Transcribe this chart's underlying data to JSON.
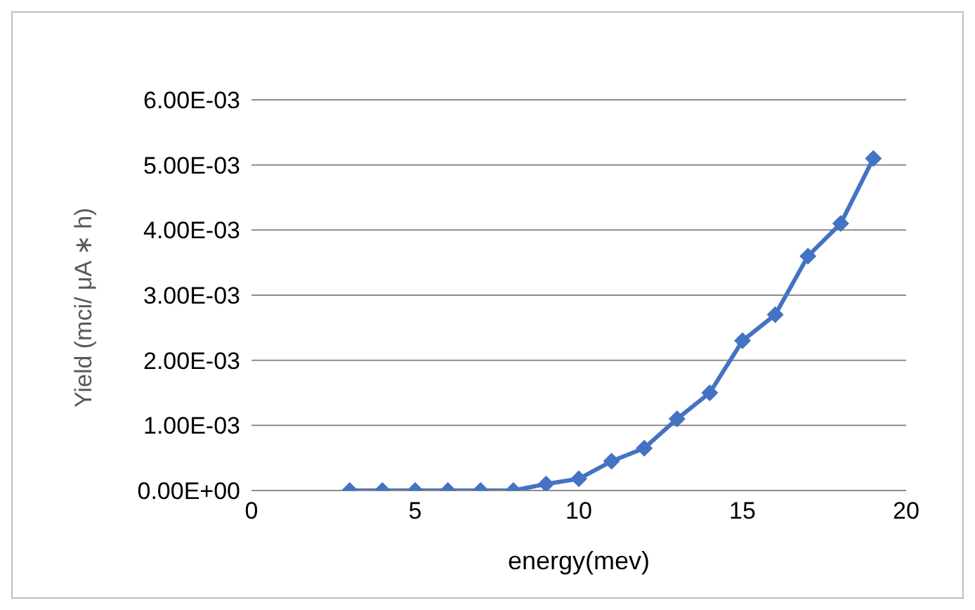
{
  "chart_data": {
    "type": "line",
    "xlabel": "energy(mev)",
    "ylabel": "Yield (mci/ μA ∗ h)",
    "x": [
      3,
      4,
      5,
      6,
      7,
      8,
      9,
      10,
      11,
      12,
      13,
      14,
      15,
      16,
      17,
      18,
      19
    ],
    "series": [
      {
        "color": "#4472c4",
        "values": [
          0,
          0,
          0,
          0,
          0,
          0,
          0.0001,
          0.00018,
          0.00045,
          0.00065,
          0.0011,
          0.0015,
          0.0023,
          0.0027,
          0.0036,
          0.0041,
          0.0051
        ]
      }
    ],
    "xlim": [
      0,
      20
    ],
    "xticks": [
      0,
      5,
      10,
      15,
      20
    ],
    "ylim": [
      0,
      0.006
    ],
    "yticks": [
      {
        "value": 0,
        "label": "0.00E+00"
      },
      {
        "value": 0.001,
        "label": "1.00E-03"
      },
      {
        "value": 0.002,
        "label": "2.00E-03"
      },
      {
        "value": 0.003,
        "label": "3.00E-03"
      },
      {
        "value": 0.004,
        "label": "4.00E-03"
      },
      {
        "value": 0.005,
        "label": "5.00E-03"
      },
      {
        "value": 0.006,
        "label": "6.00E-03"
      }
    ],
    "grid": "y",
    "marker": "diamond",
    "line_style": "solid",
    "legend": false
  }
}
